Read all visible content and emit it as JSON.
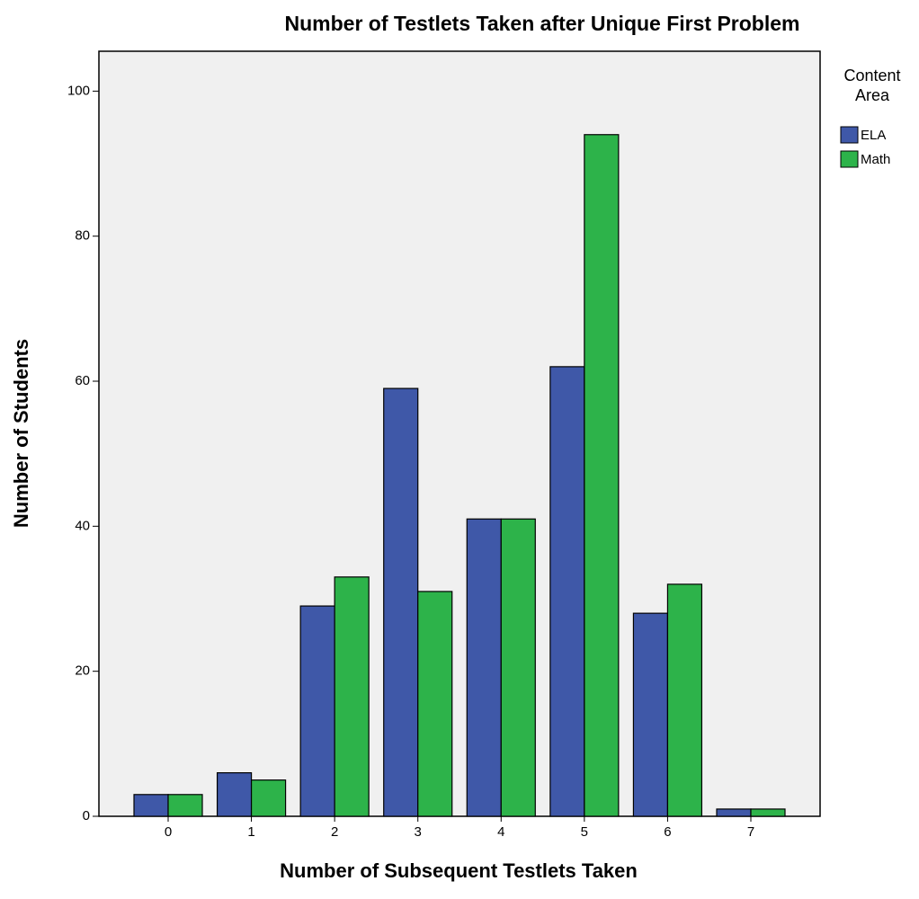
{
  "chart_data": {
    "type": "bar",
    "title": "Number of Testlets Taken after Unique First Problem",
    "x_label": "Number of Subsequent Testlets Taken",
    "y_label": "Number of Students",
    "legend_title": "Content Area",
    "legend_position": "right",
    "categories": [
      "0",
      "1",
      "2",
      "3",
      "4",
      "5",
      "6",
      "7"
    ],
    "series": [
      {
        "name": "ELA",
        "color": "#3f58a8",
        "values": [
          3,
          6,
          29,
          59,
          41,
          62,
          28,
          1
        ]
      },
      {
        "name": "Math",
        "color": "#2db34a",
        "values": [
          3,
          5,
          33,
          31,
          41,
          94,
          32,
          1
        ]
      }
    ],
    "ylim": [
      0,
      105.5
    ],
    "yticks": [
      0,
      20,
      40,
      60,
      80,
      100
    ]
  }
}
